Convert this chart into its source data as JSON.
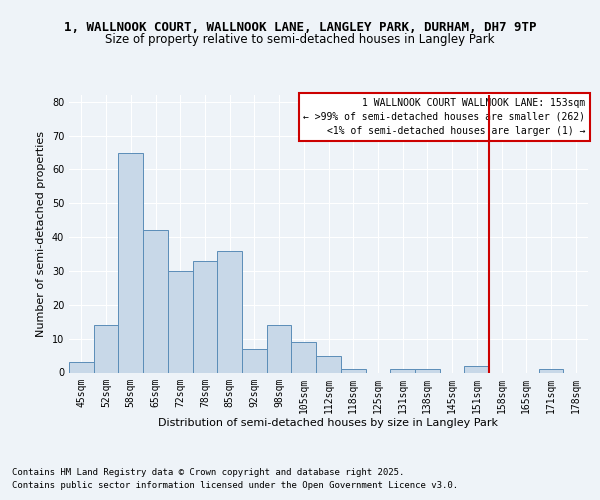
{
  "title_line1": "1, WALLNOOK COURT, WALLNOOK LANE, LANGLEY PARK, DURHAM, DH7 9TP",
  "title_line2": "Size of property relative to semi-detached houses in Langley Park",
  "xlabel": "Distribution of semi-detached houses by size in Langley Park",
  "ylabel": "Number of semi-detached properties",
  "categories": [
    "45sqm",
    "52sqm",
    "58sqm",
    "65sqm",
    "72sqm",
    "78sqm",
    "85sqm",
    "92sqm",
    "98sqm",
    "105sqm",
    "112sqm",
    "118sqm",
    "125sqm",
    "131sqm",
    "138sqm",
    "145sqm",
    "151sqm",
    "158sqm",
    "165sqm",
    "171sqm",
    "178sqm"
  ],
  "values": [
    3,
    14,
    65,
    42,
    30,
    33,
    36,
    7,
    14,
    9,
    5,
    1,
    0,
    1,
    1,
    0,
    2,
    0,
    0,
    1,
    0
  ],
  "bar_color": "#c8d8e8",
  "bar_edge_color": "#5b8db8",
  "vline_color": "#cc0000",
  "vline_pos": 16.5,
  "legend_title": "1 WALLNOOK COURT WALLNOOK LANE: 153sqm",
  "legend_line1": "← >99% of semi-detached houses are smaller (262)",
  "legend_line2": "<1% of semi-detached houses are larger (1) →",
  "legend_box_color": "#cc0000",
  "ylim": [
    0,
    82
  ],
  "yticks": [
    0,
    10,
    20,
    30,
    40,
    50,
    60,
    70,
    80
  ],
  "footer_line1": "Contains HM Land Registry data © Crown copyright and database right 2025.",
  "footer_line2": "Contains public sector information licensed under the Open Government Licence v3.0.",
  "bg_color": "#eef3f8",
  "plot_bg_color": "#eef3f8",
  "grid_color": "#ffffff",
  "title_fontsize": 9,
  "subtitle_fontsize": 8.5,
  "axis_label_fontsize": 8,
  "tick_fontsize": 7,
  "footer_fontsize": 6.5,
  "legend_fontsize": 7
}
